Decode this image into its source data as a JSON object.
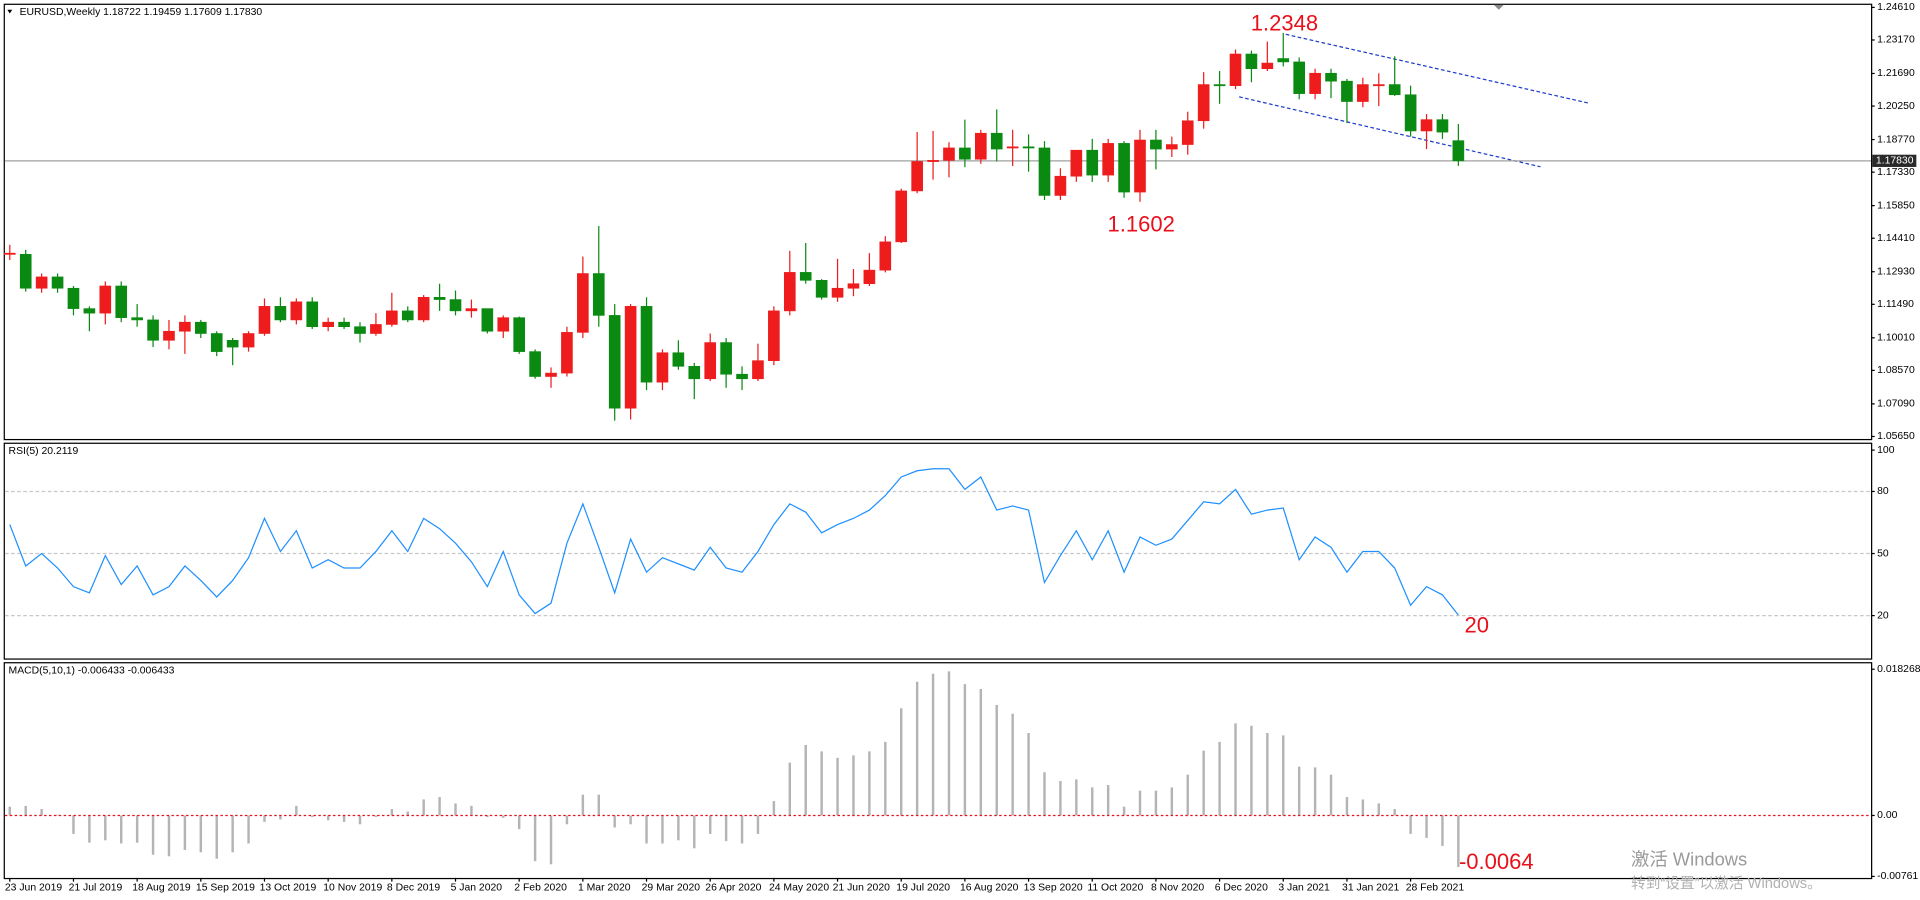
{
  "chart_data": [
    {
      "type": "candlestick",
      "title": "EURUSD,Weekly  1.18722 1.19459 1.17609 1.17830",
      "categories": [
        "23 Jun 2019",
        null,
        null,
        null,
        "21 Jul 2019",
        null,
        null,
        null,
        "18 Aug 2019",
        null,
        null,
        null,
        "15 Sep 2019",
        null,
        null,
        null,
        "13 Oct 2019",
        null,
        null,
        null,
        "10 Nov 2019",
        null,
        null,
        null,
        "8 Dec 2019",
        null,
        null,
        null,
        "5 Jan 2020",
        null,
        null,
        null,
        "2 Feb 2020",
        null,
        null,
        null,
        "1 Mar 2020",
        null,
        null,
        null,
        "29 Mar 2020",
        null,
        null,
        null,
        "26 Apr 2020",
        null,
        null,
        null,
        "24 May 2020",
        null,
        null,
        null,
        "21 Jun 2020",
        null,
        null,
        null,
        "19 Jul 2020",
        null,
        null,
        null,
        "16 Aug 2020",
        null,
        null,
        null,
        "13 Sep 2020",
        null,
        null,
        null,
        "11 Oct 2020",
        null,
        null,
        null,
        "8 Nov 2020",
        null,
        null,
        null,
        "6 Dec 2020",
        null,
        null,
        null,
        "3 Jan 2021",
        null,
        null,
        null,
        "31 Jan 2021",
        null,
        null,
        null,
        "28 Feb 2021",
        null,
        null,
        null
      ],
      "open": [
        1.137,
        1.137,
        1.122,
        1.127,
        1.122,
        1.113,
        1.111,
        1.123,
        1.109,
        1.108,
        1.099,
        1.103,
        1.107,
        1.102,
        1.099,
        1.096,
        1.102,
        1.114,
        1.108,
        1.116,
        1.105,
        1.107,
        1.105,
        1.102,
        1.106,
        1.112,
        1.108,
        1.118,
        1.117,
        1.112,
        1.113,
        1.103,
        1.109,
        1.094,
        1.083,
        1.0845,
        1.1025,
        1.1285,
        1.11,
        1.069,
        1.114,
        1.0805,
        1.0935,
        1.0875,
        1.082,
        1.098,
        1.084,
        1.082,
        1.09,
        1.112,
        1.129,
        1.1255,
        1.118,
        1.122,
        1.124,
        1.13,
        1.1425,
        1.165,
        1.178,
        1.1785,
        1.184,
        1.179,
        1.1905,
        1.184,
        1.1845,
        1.184,
        1.163,
        1.1715,
        1.183,
        1.172,
        1.186,
        1.1645,
        1.1875,
        1.1835,
        1.1855,
        1.196,
        1.212,
        1.2115,
        1.2255,
        1.219,
        1.2235,
        1.222,
        1.208,
        1.217,
        1.2135,
        1.2045,
        1.212,
        1.212,
        1.2075,
        1.1915,
        1.1965,
        1.18722
      ],
      "high": [
        1.1412,
        1.139,
        1.1285,
        1.1285,
        1.123,
        1.114,
        1.125,
        1.125,
        1.115,
        1.11,
        1.108,
        1.11,
        1.108,
        1.103,
        1.1,
        1.103,
        1.1175,
        1.118,
        1.1175,
        1.118,
        1.109,
        1.109,
        1.107,
        1.111,
        1.12,
        1.114,
        1.119,
        1.124,
        1.121,
        1.117,
        1.113,
        1.11,
        1.1095,
        1.095,
        1.087,
        1.105,
        1.136,
        1.1495,
        1.115,
        1.115,
        1.118,
        1.095,
        1.099,
        1.089,
        1.102,
        1.1,
        1.0875,
        1.0975,
        1.114,
        1.1385,
        1.142,
        1.126,
        1.135,
        1.1305,
        1.1375,
        1.145,
        1.166,
        1.191,
        1.1915,
        1.1865,
        1.1965,
        1.192,
        1.201,
        1.192,
        1.19,
        1.187,
        1.175,
        1.183,
        1.188,
        1.188,
        1.187,
        1.192,
        1.192,
        1.189,
        1.2,
        1.2175,
        1.218,
        1.2275,
        1.227,
        1.231,
        1.2348,
        1.224,
        1.219,
        1.219,
        1.2145,
        1.215,
        1.217,
        1.2245,
        1.2115,
        1.199,
        1.199,
        1.19459
      ],
      "low": [
        1.1345,
        1.1205,
        1.12,
        1.12,
        1.11,
        1.103,
        1.106,
        1.107,
        1.105,
        1.096,
        1.095,
        1.093,
        1.1,
        1.092,
        1.088,
        1.094,
        1.101,
        1.107,
        1.106,
        1.104,
        1.103,
        1.104,
        1.098,
        1.101,
        1.105,
        1.107,
        1.107,
        1.112,
        1.11,
        1.109,
        1.102,
        1.1,
        1.093,
        1.082,
        1.078,
        1.083,
        1.1,
        1.105,
        1.0635,
        1.064,
        1.077,
        1.077,
        1.086,
        1.073,
        1.081,
        1.078,
        1.077,
        1.081,
        1.088,
        1.11,
        1.124,
        1.117,
        1.116,
        1.1185,
        1.123,
        1.129,
        1.142,
        1.164,
        1.17,
        1.171,
        1.1755,
        1.177,
        1.178,
        1.176,
        1.1735,
        1.161,
        1.161,
        1.169,
        1.169,
        1.169,
        1.162,
        1.1602,
        1.1745,
        1.18,
        1.181,
        1.1925,
        1.2035,
        1.21,
        1.213,
        1.218,
        1.22,
        1.2055,
        1.2055,
        1.206,
        1.195,
        1.202,
        1.2025,
        1.207,
        1.189,
        1.1835,
        1.188,
        1.17609
      ],
      "close": [
        1.1375,
        1.122,
        1.127,
        1.122,
        1.113,
        1.111,
        1.123,
        1.109,
        1.108,
        1.099,
        1.103,
        1.107,
        1.102,
        1.094,
        1.096,
        1.102,
        1.114,
        1.108,
        1.116,
        1.105,
        1.107,
        1.105,
        1.102,
        1.106,
        1.112,
        1.108,
        1.118,
        1.117,
        1.112,
        1.113,
        1.103,
        1.109,
        1.094,
        1.083,
        1.0845,
        1.1025,
        1.1285,
        1.11,
        1.069,
        1.114,
        1.0805,
        1.0935,
        1.0875,
        1.082,
        1.098,
        1.084,
        1.082,
        1.09,
        1.112,
        1.129,
        1.1255,
        1.118,
        1.122,
        1.124,
        1.13,
        1.1425,
        1.165,
        1.178,
        1.1785,
        1.184,
        1.179,
        1.1905,
        1.1835,
        1.1845,
        1.184,
        1.163,
        1.1715,
        1.183,
        1.172,
        1.186,
        1.1645,
        1.1875,
        1.1835,
        1.1855,
        1.196,
        1.212,
        1.2115,
        1.2255,
        1.219,
        1.2215,
        1.222,
        1.208,
        1.217,
        1.2135,
        1.2045,
        1.212,
        1.212,
        1.2075,
        1.1915,
        1.1965,
        1.191,
        1.1783
      ],
      "up_color": "#ee1c1c",
      "down_color": "#0b8a12",
      "ylim": [
        1.0554,
        1.2472
      ],
      "yticks": [
        {
          "value": 1.2461,
          "label": "1.24610"
        },
        {
          "value": 1.2317,
          "label": "1.23170"
        },
        {
          "value": 1.2169,
          "label": "1.21690"
        },
        {
          "value": 1.2025,
          "label": "1.20250"
        },
        {
          "value": 1.1877,
          "label": "1.18770"
        },
        {
          "value": 1.1733,
          "label": "1.17330"
        },
        {
          "value": 1.1585,
          "label": "1.15850"
        },
        {
          "value": 1.1441,
          "label": "1.14410"
        },
        {
          "value": 1.1293,
          "label": "1.12930"
        },
        {
          "value": 1.1149,
          "label": "1.11490"
        },
        {
          "value": 1.1001,
          "label": "1.10010"
        },
        {
          "value": 1.0857,
          "label": "1.08570"
        },
        {
          "value": 1.0709,
          "label": "1.07090"
        },
        {
          "value": 1.0565,
          "label": "1.05650"
        }
      ],
      "price_line": {
        "value": 1.1783,
        "label": "1.17830"
      },
      "annotations": [
        "1.2348",
        "1.1602"
      ]
    },
    {
      "type": "line",
      "title": "RSI(5) 20.2119",
      "values": [
        64,
        44,
        50,
        43,
        34,
        31,
        49,
        35,
        44,
        30,
        34,
        44,
        37,
        29,
        37,
        48,
        67,
        51,
        61,
        43,
        47,
        43,
        43,
        51,
        61,
        51,
        67,
        62,
        55,
        46,
        34,
        51,
        30,
        21,
        26,
        55,
        74,
        53,
        31,
        57,
        41,
        48,
        45,
        42,
        53,
        43,
        41,
        51,
        64,
        74,
        70,
        60,
        64,
        67,
        71,
        78,
        87,
        90,
        91,
        91,
        81,
        87,
        71,
        73,
        71,
        36,
        49,
        61,
        47,
        61,
        41,
        58,
        54,
        57,
        66,
        75,
        74,
        81,
        69,
        71,
        72,
        47,
        58,
        53,
        41,
        51,
        51,
        43,
        25,
        34,
        30,
        20.2119
      ],
      "color": "#1e90ff",
      "ylim": [
        -1.3,
        103.6
      ],
      "yticks": [
        100,
        80,
        50,
        20
      ],
      "grid": true,
      "annotations": [
        "20"
      ]
    },
    {
      "type": "bar",
      "title": "MACD(5,10,1) -0.006433 -0.006433",
      "values": [
        0.0011,
        0.0012,
        0.0008,
        0.0001,
        -0.0023,
        -0.0034,
        -0.0031,
        -0.0035,
        -0.0034,
        -0.0049,
        -0.0051,
        -0.0043,
        -0.0046,
        -0.0054,
        -0.0046,
        -0.0035,
        -0.0008,
        -0.0005,
        0.0012,
        -0.0002,
        -0.0006,
        -0.0008,
        -0.0011,
        -0.0002,
        0.0008,
        0.0005,
        0.002,
        0.0023,
        0.0015,
        0.0012,
        -0.0002,
        -0.0003,
        -0.0017,
        -0.0057,
        -0.0061,
        -0.0011,
        0.0026,
        0.0026,
        -0.0015,
        -0.0011,
        -0.0035,
        -0.0035,
        -0.0031,
        -0.0041,
        -0.0023,
        -0.0032,
        -0.0035,
        -0.0023,
        0.0018,
        0.0066,
        0.0088,
        0.008,
        0.0072,
        0.0075,
        0.008,
        0.0092,
        0.0134,
        0.0167,
        0.0177,
        0.018,
        0.0164,
        0.0158,
        0.0138,
        0.0127,
        0.0103,
        0.0054,
        0.0043,
        0.0045,
        0.0035,
        0.0038,
        0.0011,
        0.0031,
        0.0031,
        0.0035,
        0.0051,
        0.0081,
        0.0092,
        0.0115,
        0.0112,
        0.0103,
        0.01,
        0.0061,
        0.006,
        0.0051,
        0.0023,
        0.002,
        0.0015,
        0.0008,
        -0.0023,
        -0.0028,
        -0.0038,
        -0.006433
      ],
      "color": "#b4b4b4",
      "zero_color": "#e8101a",
      "ylim": [
        -0.0078,
        0.019
      ],
      "yticks": [
        0.018268,
        {
          "value": 0,
          "label": "0.00"
        },
        -0.00761
      ],
      "annotations": [
        "-0.0064"
      ]
    }
  ],
  "watermark": {
    "line1": "激活 Windows",
    "line2": "转到“设置”以激活 Windows。"
  }
}
